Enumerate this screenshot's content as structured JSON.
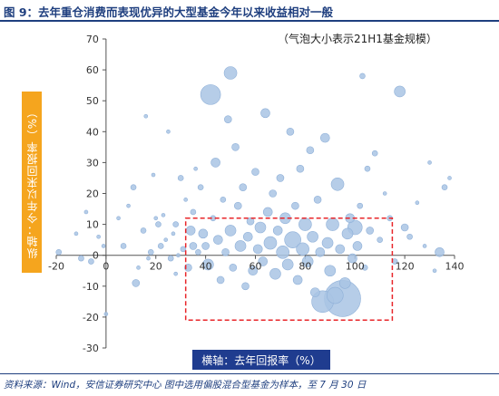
{
  "figure": {
    "title": "图 9：去年重仓消费而表现优异的大型基金今年以来收益相对一般",
    "source": "资料来源：Wind，安信证券研究中心    图中选用偏股混合型基金为样本，至 7 月 30 日"
  },
  "colors": {
    "bubble": "#a9c4e4",
    "bubble_stroke": "#8fb0d8",
    "highlight_box": "#e8262a",
    "title": "#1f3f7f",
    "ylabel_bg": "#f5a51e",
    "xlabel_bg": "#1f3c8f"
  },
  "chart_data": {
    "type": "scatter",
    "xlabel": "横轴：去年回报率（%）",
    "ylabel": "纵轴：今年以来回报率（%）",
    "size_note": "（气泡大小表示21H1基金规模）",
    "xlim": [
      -20,
      140
    ],
    "ylim": [
      -30,
      70
    ],
    "xticks": [
      -20,
      0,
      20,
      40,
      60,
      80,
      100,
      120,
      140
    ],
    "yticks": [
      -30,
      -20,
      -10,
      0,
      10,
      20,
      30,
      40,
      50,
      60,
      70
    ],
    "highlight_region": {
      "x": [
        32,
        115
      ],
      "y": [
        -21,
        12
      ]
    },
    "points": [
      [
        -19,
        1,
        3
      ],
      [
        -12,
        7,
        2
      ],
      [
        -10,
        -1,
        3
      ],
      [
        -8,
        14,
        2
      ],
      [
        -6,
        -2,
        3
      ],
      [
        -3,
        6,
        2
      ],
      [
        -1,
        3,
        2
      ],
      [
        0,
        -19,
        2
      ],
      [
        5,
        12,
        2
      ],
      [
        7,
        3,
        3
      ],
      [
        9,
        16,
        2
      ],
      [
        11,
        22,
        3
      ],
      [
        12,
        -9,
        4
      ],
      [
        13,
        -4,
        2
      ],
      [
        15,
        8,
        3
      ],
      [
        16,
        45,
        2
      ],
      [
        17,
        -1,
        2
      ],
      [
        18,
        1,
        3
      ],
      [
        19,
        26,
        2
      ],
      [
        20,
        12,
        2
      ],
      [
        21,
        10,
        3
      ],
      [
        22,
        3,
        3
      ],
      [
        23,
        13,
        2
      ],
      [
        24,
        5,
        2
      ],
      [
        25,
        40,
        2
      ],
      [
        26,
        -1,
        3
      ],
      [
        27,
        7,
        2
      ],
      [
        28,
        10,
        3
      ],
      [
        28,
        -6,
        2
      ],
      [
        29,
        0,
        2
      ],
      [
        30,
        25,
        3
      ],
      [
        31,
        2,
        3
      ],
      [
        32,
        18,
        2
      ],
      [
        33,
        -4,
        4
      ],
      [
        34,
        8,
        5
      ],
      [
        35,
        14,
        3
      ],
      [
        35,
        3,
        4
      ],
      [
        36,
        28,
        2
      ],
      [
        37,
        1,
        3
      ],
      [
        38,
        22,
        3
      ],
      [
        39,
        7,
        5
      ],
      [
        40,
        3,
        4
      ],
      [
        41,
        -3,
        6
      ],
      [
        42,
        52,
        11
      ],
      [
        43,
        12,
        3
      ],
      [
        44,
        30,
        5
      ],
      [
        45,
        5,
        5
      ],
      [
        46,
        -8,
        4
      ],
      [
        47,
        18,
        3
      ],
      [
        48,
        1,
        4
      ],
      [
        49,
        44,
        4
      ],
      [
        50,
        59,
        7
      ],
      [
        50,
        8,
        6
      ],
      [
        51,
        -4,
        4
      ],
      [
        52,
        35,
        4
      ],
      [
        53,
        16,
        4
      ],
      [
        54,
        3,
        6
      ],
      [
        55,
        22,
        4
      ],
      [
        56,
        -10,
        4
      ],
      [
        57,
        6,
        5
      ],
      [
        58,
        11,
        4
      ],
      [
        59,
        -5,
        5
      ],
      [
        60,
        27,
        4
      ],
      [
        61,
        2,
        5
      ],
      [
        62,
        9,
        6
      ],
      [
        63,
        -2,
        5
      ],
      [
        64,
        46,
        5
      ],
      [
        65,
        14,
        5
      ],
      [
        66,
        4,
        7
      ],
      [
        67,
        20,
        4
      ],
      [
        68,
        -6,
        6
      ],
      [
        69,
        8,
        5
      ],
      [
        70,
        25,
        4
      ],
      [
        71,
        1,
        7
      ],
      [
        72,
        12,
        6
      ],
      [
        73,
        -3,
        6
      ],
      [
        74,
        40,
        4
      ],
      [
        75,
        5,
        9
      ],
      [
        76,
        16,
        4
      ],
      [
        77,
        -8,
        5
      ],
      [
        78,
        28,
        4
      ],
      [
        79,
        2,
        7
      ],
      [
        80,
        10,
        7
      ],
      [
        81,
        -2,
        6
      ],
      [
        82,
        34,
        4
      ],
      [
        83,
        6,
        6
      ],
      [
        84,
        -12,
        5
      ],
      [
        85,
        18,
        4
      ],
      [
        86,
        1,
        5
      ],
      [
        87,
        -15,
        12
      ],
      [
        88,
        38,
        5
      ],
      [
        89,
        4,
        6
      ],
      [
        90,
        -5,
        6
      ],
      [
        91,
        10,
        7
      ],
      [
        92,
        -13,
        9
      ],
      [
        93,
        23,
        7
      ],
      [
        94,
        2,
        5
      ],
      [
        95,
        -14,
        20
      ],
      [
        96,
        -9,
        6
      ],
      [
        97,
        7,
        6
      ],
      [
        98,
        12,
        5
      ],
      [
        99,
        -1,
        5
      ],
      [
        100,
        9,
        8
      ],
      [
        101,
        3,
        5
      ],
      [
        102,
        16,
        3
      ],
      [
        103,
        58,
        3
      ],
      [
        104,
        -4,
        3
      ],
      [
        105,
        28,
        3
      ],
      [
        106,
        8,
        4
      ],
      [
        108,
        33,
        3
      ],
      [
        110,
        5,
        3
      ],
      [
        112,
        20,
        2
      ],
      [
        114,
        12,
        3
      ],
      [
        116,
        -2,
        3
      ],
      [
        118,
        53,
        6
      ],
      [
        120,
        9,
        4
      ],
      [
        122,
        6,
        3
      ],
      [
        125,
        17,
        2
      ],
      [
        128,
        3,
        2
      ],
      [
        130,
        30,
        2
      ],
      [
        132,
        -5,
        2
      ],
      [
        134,
        1,
        5
      ],
      [
        136,
        22,
        3
      ],
      [
        138,
        25,
        2
      ]
    ]
  }
}
